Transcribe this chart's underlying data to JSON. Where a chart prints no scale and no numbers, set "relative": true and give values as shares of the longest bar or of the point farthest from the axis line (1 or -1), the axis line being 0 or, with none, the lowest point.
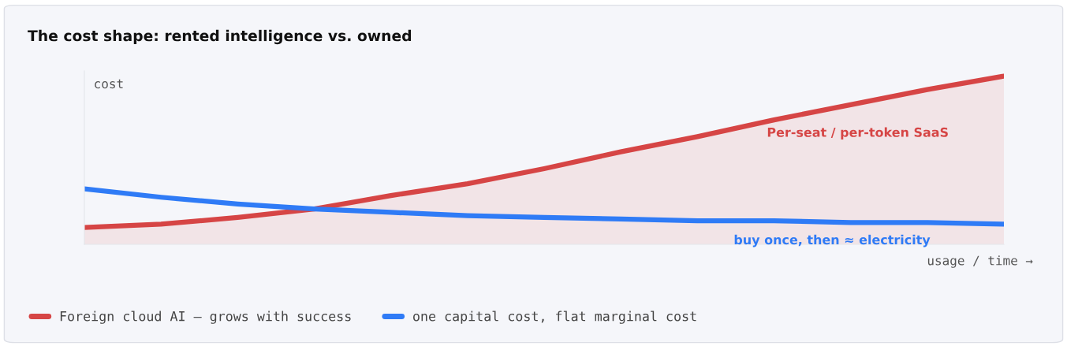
{
  "chart_data": {
    "type": "line",
    "title": "The cost shape: rented intelligence vs. owned",
    "ylabel": "cost",
    "xlabel": "usage / time →",
    "relative": true,
    "categories": [
      null,
      null,
      null,
      null,
      null,
      null,
      null,
      null,
      null,
      null,
      null,
      null,
      null
    ],
    "series": [
      {
        "name": "Foreign cloud AI — grows with success",
        "type": "area",
        "color": "#d64545",
        "values": [
          0.1,
          0.12,
          0.16,
          0.21,
          0.29,
          0.36,
          0.45,
          0.55,
          0.64,
          0.74,
          0.83,
          0.92,
          1.0
        ]
      },
      {
        "name": "one capital cost, flat marginal cost",
        "color": "#2f7bf6",
        "values": [
          0.33,
          0.28,
          0.24,
          0.21,
          0.19,
          0.17,
          0.16,
          0.15,
          0.14,
          0.14,
          0.13,
          0.13,
          0.12
        ]
      }
    ],
    "annotations": [
      "Per-seat / per-token SaaS",
      "buy once, then ≈ electricity"
    ],
    "legend": "bottom",
    "grid": false
  }
}
